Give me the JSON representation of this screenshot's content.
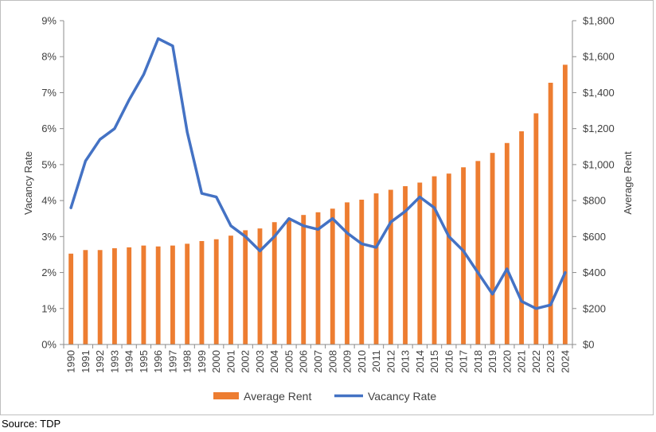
{
  "chart_data": {
    "type": "bar+line",
    "categories": [
      "1990",
      "1991",
      "1992",
      "1993",
      "1994",
      "1995",
      "1996",
      "1997",
      "1998",
      "1999",
      "2000",
      "2001",
      "2002",
      "2003",
      "2004",
      "2005",
      "2006",
      "2007",
      "2008",
      "2009",
      "2010",
      "2011",
      "2012",
      "2013",
      "2014",
      "2015",
      "2016",
      "2017",
      "2018",
      "2019",
      "2020",
      "2021",
      "2022",
      "2023",
      "2024"
    ],
    "series": [
      {
        "name": "Average Rent",
        "type": "bar",
        "axis": "right",
        "color": "#ED7D31",
        "values": [
          505,
          525,
          525,
          535,
          540,
          550,
          545,
          550,
          560,
          575,
          585,
          605,
          635,
          645,
          680,
          700,
          720,
          735,
          755,
          790,
          805,
          840,
          860,
          880,
          900,
          935,
          950,
          985,
          1020,
          1065,
          1120,
          1185,
          1285,
          1455,
          1555
        ]
      },
      {
        "name": "Vacancy Rate",
        "type": "line",
        "axis": "left",
        "color": "#4472C4",
        "values": [
          3.8,
          5.1,
          5.7,
          6.0,
          6.8,
          7.5,
          8.5,
          8.3,
          5.9,
          4.2,
          4.1,
          3.3,
          3.0,
          2.6,
          3.0,
          3.5,
          3.3,
          3.2,
          3.5,
          3.1,
          2.8,
          2.7,
          3.4,
          3.7,
          4.1,
          3.8,
          3.0,
          2.6,
          2.0,
          1.4,
          2.1,
          1.2,
          1.0,
          1.1,
          2.0
        ]
      }
    ],
    "left_axis": {
      "title": "Vacancy Rate",
      "min": 0,
      "max": 9,
      "step": 1,
      "tick_labels": [
        "0%",
        "1%",
        "2%",
        "3%",
        "4%",
        "5%",
        "6%",
        "7%",
        "8%",
        "9%"
      ]
    },
    "right_axis": {
      "title": "Average Rent",
      "min": 0,
      "max": 1800,
      "step": 200,
      "tick_labels": [
        "$0",
        "$200",
        "$400",
        "$600",
        "$800",
        "$1,000",
        "$1,200",
        "$1,400",
        "$1,600",
        "$1,800"
      ]
    },
    "grid": false,
    "legend_position": "bottom"
  },
  "source_note": "Source: TDP"
}
